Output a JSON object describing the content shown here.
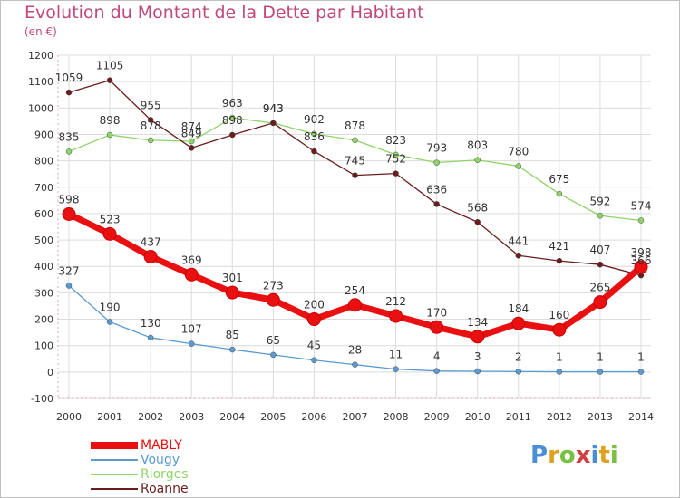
{
  "chart_data": {
    "type": "line",
    "title": "Evolution du Montant de la Dette par Habitant",
    "subtitle": "(en €)",
    "x": [
      "2000",
      "2001",
      "2002",
      "2003",
      "2004",
      "2005",
      "2006",
      "2007",
      "2008",
      "2009",
      "2010",
      "2011",
      "2012",
      "2013",
      "2014"
    ],
    "ylim": [
      -100,
      1200
    ],
    "yticks": [
      -100,
      0,
      100,
      200,
      300,
      400,
      500,
      600,
      700,
      800,
      900,
      1000,
      1100,
      1200
    ],
    "grid": true,
    "legend_position": "bottom-left",
    "series": [
      {
        "name": "MABLY",
        "color": "#e81010",
        "values": [
          598,
          523,
          437,
          369,
          301,
          273,
          200,
          254,
          212,
          170,
          134,
          184,
          160,
          265,
          398
        ]
      },
      {
        "name": "Vougy",
        "color": "#5b9bd0",
        "values": [
          327,
          190,
          130,
          107,
          85,
          65,
          45,
          28,
          11,
          4,
          3,
          2,
          1,
          1,
          1
        ]
      },
      {
        "name": "Riorges",
        "color": "#8fd46a",
        "values": [
          835,
          898,
          878,
          874,
          963,
          943,
          902,
          878,
          823,
          793,
          803,
          780,
          675,
          592,
          574
        ]
      },
      {
        "name": "Roanne",
        "color": "#6b1d1d",
        "values": [
          1059,
          1105,
          955,
          849,
          898,
          943,
          836,
          745,
          752,
          636,
          568,
          441,
          421,
          407,
          366
        ]
      }
    ]
  },
  "branding": {
    "text": "Proxiti"
  }
}
